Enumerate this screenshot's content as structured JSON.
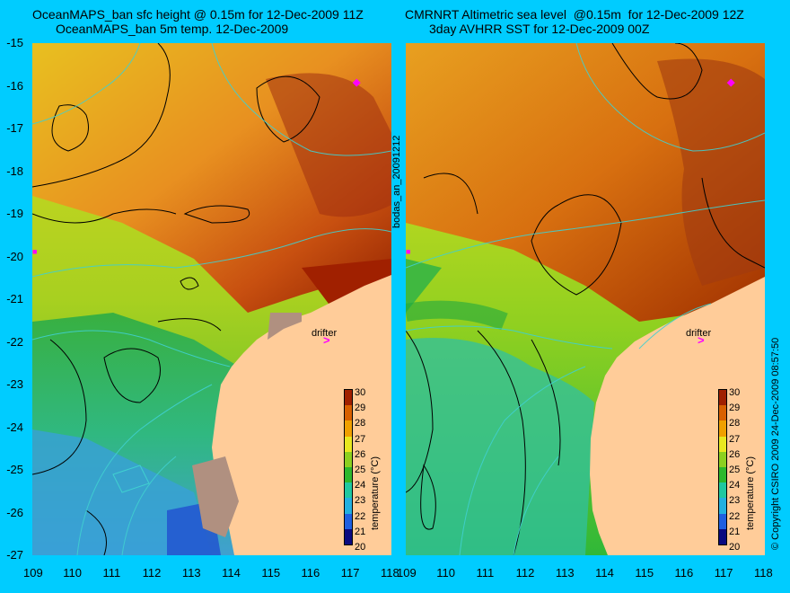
{
  "left_panel": {
    "title_line1": "OceanMAPS_ban sfc height @ 0.15m for 12-Dec-2009 11Z",
    "title_line2": "OceanMAPS_ban 5m temp. 12-Dec-2009",
    "drifter_label": "drifter"
  },
  "right_panel": {
    "title_line1": "CMRNRT Altimetric sea level  @0.15m  for 12-Dec-2009 12Z",
    "title_line2": "3day AVHRR SST for 12-Dec-2009 00Z",
    "drifter_label": "drifter"
  },
  "axes": {
    "lon_ticks": [
      "109",
      "110",
      "111",
      "112",
      "113",
      "114",
      "115",
      "116",
      "117",
      "118"
    ],
    "lat_ticks": [
      "-15",
      "-16",
      "-17",
      "-18",
      "-19",
      "-20",
      "-21",
      "-22",
      "-23",
      "-24",
      "-25",
      "-26",
      "-27"
    ],
    "lon_range": [
      109,
      118
    ],
    "lat_range": [
      -27,
      -15
    ]
  },
  "colorbar": {
    "label": "temperature (°C)",
    "ticks": [
      "30",
      "29",
      "28",
      "27",
      "26",
      "25",
      "24",
      "23",
      "22",
      "21",
      "20"
    ],
    "range": [
      20,
      30
    ],
    "colors": [
      "#0a0a80",
      "#1f5fe0",
      "#22b0e0",
      "#20c8a0",
      "#2db82d",
      "#8cd020",
      "#e8e820",
      "#f0a000",
      "#d86000",
      "#a02000"
    ]
  },
  "side_labels": {
    "middle": "bodas_an_20091212",
    "right": "© Copyright CSIRO 2009   24-Dec-2009 08:57:50"
  },
  "colors": {
    "background": "#00ccff",
    "land": "#ffcc99",
    "drifter": "#ff00ff",
    "coastline_contour": "#40d0d0"
  }
}
